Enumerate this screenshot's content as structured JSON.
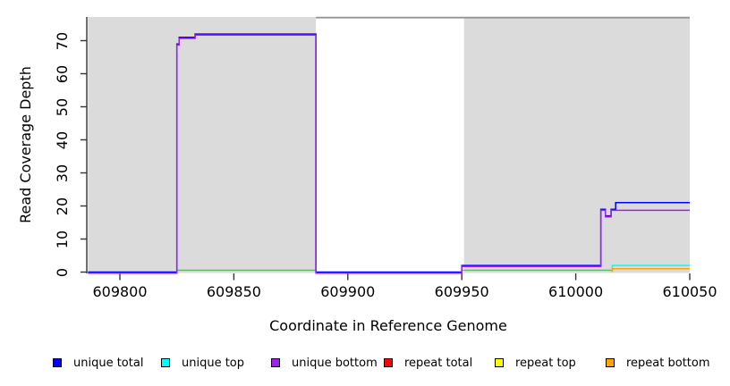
{
  "figure": {
    "xlabel": "Coordinate in Reference Genome",
    "ylabel": "Read Coverage Depth"
  },
  "legend": {
    "position": "bottom",
    "items": [
      {
        "label": "unique total",
        "color": "#0000FF"
      },
      {
        "label": "unique top",
        "color": "#00FFFF"
      },
      {
        "label": "unique bottom",
        "color": "#A020F0"
      },
      {
        "label": "repeat total",
        "color": "#FF0000"
      },
      {
        "label": "repeat top",
        "color": "#FFFF00"
      },
      {
        "label": "repeat bottom",
        "color": "#FFA500"
      }
    ]
  },
  "chart_data": {
    "type": "line",
    "title": "",
    "xlabel": "Coordinate in Reference Genome",
    "ylabel": "Read Coverage Depth",
    "xlim": [
      609786,
      610051
    ],
    "ylim": [
      0,
      77.5
    ],
    "grid": false,
    "legend_position": "bottom",
    "x_ticks": [
      609800,
      609850,
      609900,
      609950,
      610000,
      610050
    ],
    "x_tick_labels": [
      "609800",
      "609850",
      "609900",
      "609950",
      "610000",
      "610050"
    ],
    "y_ticks": [
      0,
      10,
      20,
      30,
      40,
      50,
      60,
      70
    ],
    "y_tick_labels": [
      "0",
      "10",
      "20",
      "30",
      "40",
      "50",
      "60",
      "70"
    ],
    "background_regions": [
      {
        "name": "shaded-region-left",
        "x_start": 609786,
        "x_end": 609886,
        "color": "#DBDBDB"
      },
      {
        "name": "shaded-region-right",
        "x_start": 609951,
        "x_end": 610051,
        "color": "#DBDBDB"
      }
    ],
    "top_boundary_line": {
      "x_start": 609886,
      "x_end": 610051,
      "color": "#949494"
    },
    "series": [
      {
        "id": "unique_total",
        "name": "unique total",
        "color": "#0000FF",
        "points": [
          [
            609786,
            0
          ],
          [
            609825,
            0
          ],
          [
            609825,
            69
          ],
          [
            609826,
            69
          ],
          [
            609826,
            71
          ],
          [
            609833,
            71
          ],
          [
            609833,
            72
          ],
          [
            609886,
            72
          ],
          [
            609886,
            0
          ],
          [
            609950,
            0
          ],
          [
            609950,
            2
          ],
          [
            610011,
            2
          ],
          [
            610011,
            19
          ],
          [
            610013,
            19
          ],
          [
            610013,
            17
          ],
          [
            610015.5,
            17
          ],
          [
            610015.5,
            19
          ],
          [
            610017.5,
            19
          ],
          [
            610017.5,
            21
          ],
          [
            610051,
            21
          ]
        ],
        "visible_points": [
          [
            609786,
            0
          ],
          [
            609825,
            0
          ],
          [
            609825,
            69
          ],
          [
            609826,
            69
          ],
          [
            609826,
            71
          ],
          [
            609833,
            71
          ],
          [
            609833,
            72
          ],
          [
            609886,
            72
          ],
          [
            609886,
            0
          ],
          [
            609950,
            0
          ],
          [
            609950,
            2
          ],
          [
            610011,
            2
          ],
          [
            610011,
            19
          ],
          [
            610013,
            19
          ],
          [
            610013,
            17
          ],
          [
            610015.5,
            17
          ],
          [
            610015.5,
            19
          ],
          [
            610017.5,
            19
          ],
          [
            610017.5,
            21
          ],
          [
            610051,
            21
          ]
        ]
      },
      {
        "id": "unique_top",
        "name": "unique top",
        "color": "#00FFFF",
        "points": [
          [
            609786,
            0
          ],
          [
            610016,
            0
          ],
          [
            610016,
            2
          ],
          [
            610051,
            2
          ]
        ],
        "visible_points": [
          [
            610016,
            0
          ],
          [
            610016,
            2
          ],
          [
            610051,
            2
          ]
        ]
      },
      {
        "id": "unique_bottom",
        "name": "unique bottom",
        "color": "#A020F0",
        "points": [
          [
            609786,
            0
          ],
          [
            609825,
            0
          ],
          [
            609825,
            69
          ],
          [
            609826,
            69
          ],
          [
            609826,
            71
          ],
          [
            609833,
            71
          ],
          [
            609833,
            72
          ],
          [
            609886,
            72
          ],
          [
            609886,
            0
          ],
          [
            609950,
            0
          ],
          [
            609950,
            2
          ],
          [
            610011,
            2
          ],
          [
            610011,
            19
          ],
          [
            610013,
            19
          ],
          [
            610013,
            17
          ],
          [
            610015.5,
            17
          ],
          [
            610015.5,
            19
          ],
          [
            610051,
            19
          ]
        ],
        "visible_points": [
          [
            609786,
            0
          ],
          [
            609825,
            0
          ],
          [
            609825,
            69
          ],
          [
            609826,
            69
          ],
          [
            609826,
            71
          ],
          [
            609833,
            71
          ],
          [
            609833,
            72
          ],
          [
            609886,
            72
          ],
          [
            609886,
            0
          ],
          [
            609950,
            0
          ],
          [
            609950,
            2
          ],
          [
            610011,
            2
          ],
          [
            610011,
            19
          ],
          [
            610013,
            19
          ],
          [
            610013,
            17
          ],
          [
            610015.5,
            17
          ],
          [
            610015.5,
            19
          ],
          [
            610051,
            19
          ]
        ]
      },
      {
        "id": "repeat_total",
        "name": "repeat total",
        "color": "#FF0000",
        "points": [
          [
            609786,
            0
          ],
          [
            610016,
            0
          ],
          [
            610016,
            1
          ],
          [
            610051,
            1
          ]
        ],
        "visible_points": []
      },
      {
        "id": "repeat_top",
        "name": "repeat top",
        "color": "#FFFF00",
        "points": [
          [
            609786,
            0
          ],
          [
            610051,
            0
          ]
        ],
        "visible_points": []
      },
      {
        "id": "repeat_bottom",
        "name": "repeat bottom",
        "color": "#FFA500",
        "points": [
          [
            609786,
            0
          ],
          [
            610016,
            0
          ],
          [
            610016,
            1
          ],
          [
            610051,
            1
          ]
        ],
        "visible_points": [
          [
            610016,
            0
          ],
          [
            610016,
            1
          ],
          [
            610051,
            1
          ]
        ]
      }
    ],
    "overlap_line": {
      "name": "top-strand-overlap-line",
      "color": "#62B862",
      "y_value": 0.55,
      "segments": [
        [
          609825,
          609886
        ],
        [
          609950,
          610016
        ]
      ]
    },
    "draw_order": [
      "repeat_top",
      "repeat_total",
      "overlap",
      "unique_top",
      "repeat_bottom",
      "unique_total",
      "unique_bottom"
    ]
  }
}
